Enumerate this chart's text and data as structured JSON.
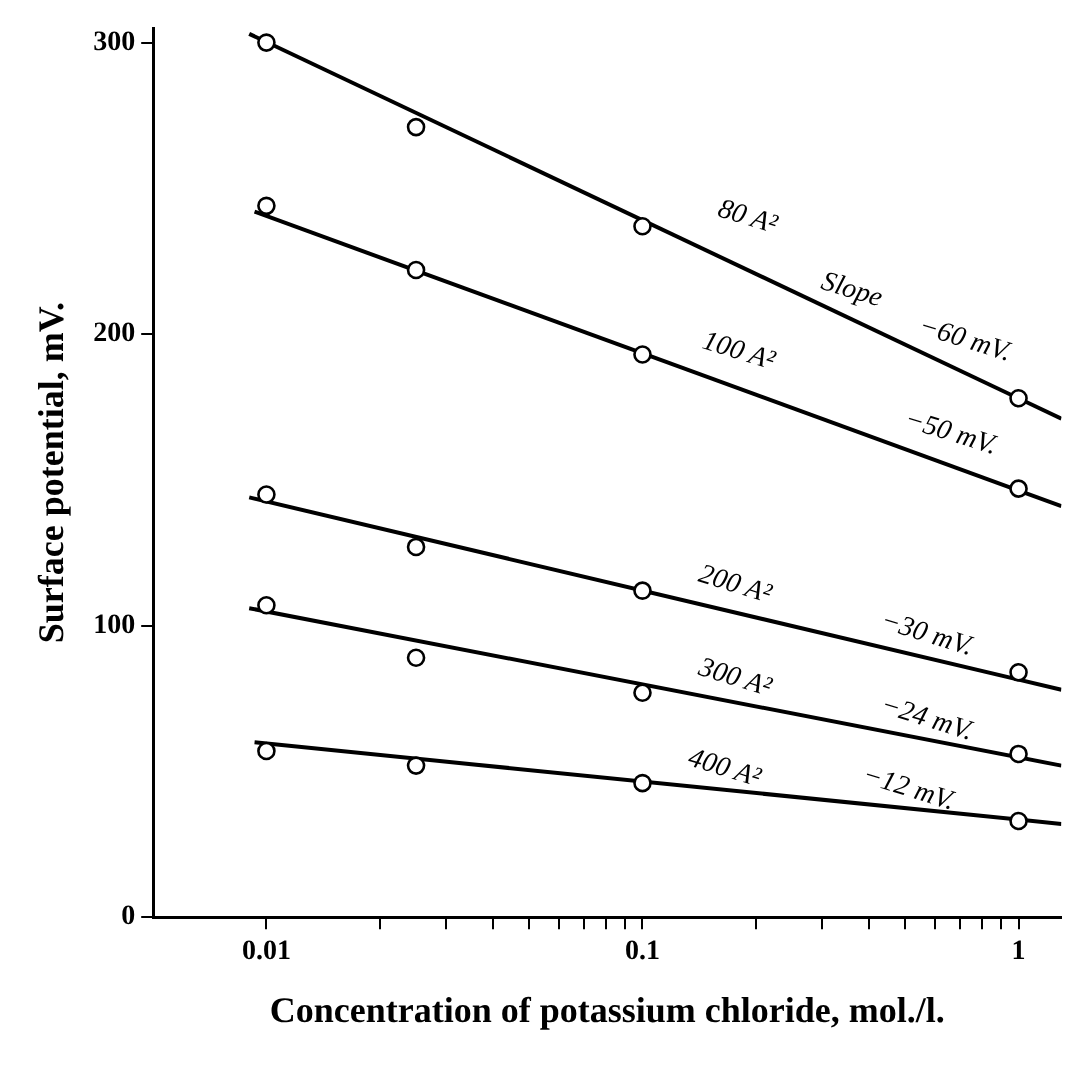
{
  "chart_data": {
    "type": "scatter",
    "xlabel": "Concentration of potassium chloride, mol./l.",
    "ylabel": "Surface potential, mV.",
    "log": "x",
    "grid": false,
    "legend": false,
    "line_style": "solid",
    "xlim": [
      0.005,
      1.3
    ],
    "ylim": [
      0,
      305
    ],
    "xticks": [
      {
        "value": 0.01,
        "label": "0.01"
      },
      {
        "value": 0.02,
        "label": null
      },
      {
        "value": 0.03,
        "label": null
      },
      {
        "value": 0.04,
        "label": null
      },
      {
        "value": 0.05,
        "label": null
      },
      {
        "value": 0.06,
        "label": null
      },
      {
        "value": 0.07,
        "label": null
      },
      {
        "value": 0.08,
        "label": null
      },
      {
        "value": 0.09,
        "label": null
      },
      {
        "value": 0.1,
        "label": "0.1"
      },
      {
        "value": 0.2,
        "label": null
      },
      {
        "value": 0.3,
        "label": null
      },
      {
        "value": 0.4,
        "label": null
      },
      {
        "value": 0.5,
        "label": null
      },
      {
        "value": 0.6,
        "label": null
      },
      {
        "value": 0.7,
        "label": null
      },
      {
        "value": 0.8,
        "label": null
      },
      {
        "value": 0.9,
        "label": null
      },
      {
        "value": 1,
        "label": "1"
      }
    ],
    "yticks": [
      0,
      100,
      200,
      300
    ],
    "series": [
      {
        "type": "scatter",
        "marker": "circle",
        "color": "#000000",
        "x": [
          0.01,
          0.025,
          0.1,
          1
        ],
        "values": [
          300,
          271,
          237,
          178
        ]
      },
      {
        "type": "scatter",
        "marker": "circle",
        "color": "#000000",
        "x": [
          0.01,
          0.025,
          0.1,
          1
        ],
        "values": [
          244,
          222,
          193,
          147
        ]
      },
      {
        "type": "scatter",
        "marker": "circle",
        "color": "#000000",
        "x": [
          0.01,
          0.025,
          0.1,
          1
        ],
        "values": [
          145,
          127,
          112,
          84
        ]
      },
      {
        "type": "scatter",
        "marker": "circle",
        "color": "#000000",
        "x": [
          0.01,
          0.025,
          0.1,
          1
        ],
        "values": [
          107,
          89,
          77,
          56
        ]
      },
      {
        "type": "scatter",
        "marker": "circle",
        "color": "#000000",
        "x": [
          0.01,
          0.025,
          0.1,
          1
        ],
        "values": [
          57,
          52,
          46,
          33
        ]
      },
      {
        "type": "line",
        "marker": "none",
        "color": "#000000",
        "x": [
          0.009,
          1.3
        ],
        "values": [
          303,
          171
        ]
      },
      {
        "type": "line",
        "marker": "none",
        "color": "#000000",
        "x": [
          0.0093,
          1.3
        ],
        "values": [
          242,
          141
        ]
      },
      {
        "type": "line",
        "marker": "none",
        "color": "#000000",
        "x": [
          0.009,
          1.3
        ],
        "values": [
          144,
          78
        ]
      },
      {
        "type": "line",
        "marker": "none",
        "color": "#000000",
        "x": [
          0.009,
          1.3
        ],
        "values": [
          106,
          52
        ]
      },
      {
        "type": "line",
        "marker": "none",
        "color": "#000000",
        "x": [
          0.0093,
          1.3
        ],
        "values": [
          60,
          32
        ]
      }
    ],
    "annotations": [
      "80 A²",
      "Slope",
      "−60 mV.",
      "100 A²",
      "−50 mV.",
      "200 A²",
      "−30 mV.",
      "300 A²",
      "−24 mV.",
      "400 A²",
      "−12 mV."
    ]
  }
}
